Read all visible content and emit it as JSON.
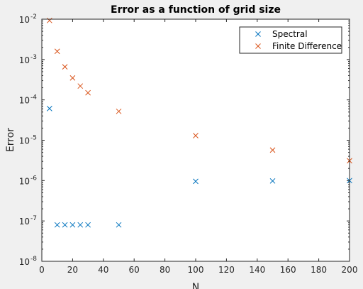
{
  "chart_data": {
    "type": "scatter",
    "title": "Error as a function of grid size",
    "xlabel": "N",
    "ylabel": "Error",
    "xlim": [
      0,
      200
    ],
    "ylim": [
      1e-08,
      0.01
    ],
    "yscale": "log",
    "x_ticks": [
      0,
      20,
      40,
      60,
      80,
      100,
      120,
      140,
      160,
      180,
      200
    ],
    "y_tick_exponents": [
      -8,
      -7,
      -6,
      -5,
      -4,
      -3,
      -2
    ],
    "y_tick_base": "10",
    "grid": false,
    "legend_position": "top-right",
    "marker": "x",
    "series": [
      {
        "name": "Spectral",
        "color": "#0072BD",
        "x": [
          5,
          10,
          15,
          20,
          25,
          30,
          50,
          100,
          150,
          200
        ],
        "y": [
          6.1e-05,
          8e-08,
          8e-08,
          8e-08,
          8e-08,
          8e-08,
          8e-08,
          9.6e-07,
          9.8e-07,
          1e-06
        ]
      },
      {
        "name": "Finite Difference",
        "color": "#D95319",
        "x": [
          5,
          10,
          15,
          20,
          25,
          30,
          50,
          100,
          150,
          200
        ],
        "y": [
          0.0093,
          0.0016,
          0.00066,
          0.00035,
          0.00022,
          0.00015,
          5.2e-05,
          1.3e-05,
          5.7e-06,
          3.1e-06
        ]
      }
    ]
  }
}
